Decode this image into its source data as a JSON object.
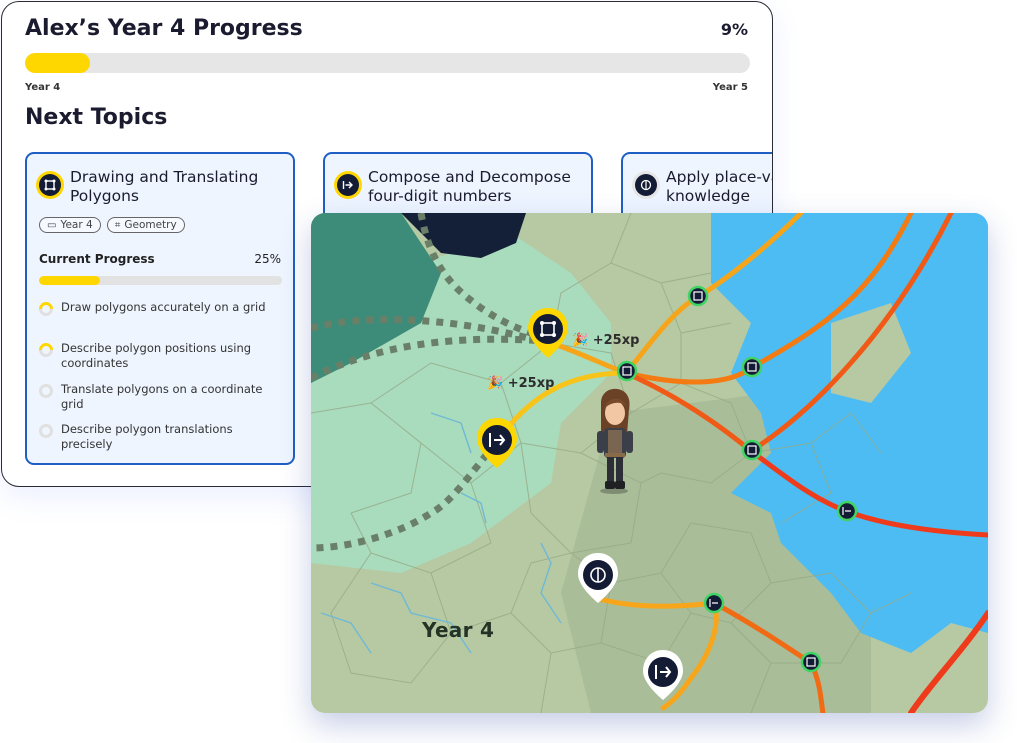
{
  "progress": {
    "title": "Alex’s Year 4 Progress",
    "percent_label": "9%",
    "fraction": 0.09,
    "start_label": "Year 4",
    "end_label": "Year 5",
    "bar_color": "#ffd700"
  },
  "next_topics": {
    "heading": "Next Topics",
    "cards": [
      {
        "title": "Drawing and Translating Polygons",
        "icon": "polygon-icon",
        "tags": [
          {
            "icon": "calendar-icon",
            "label": "Year 4"
          },
          {
            "icon": "polygon-icon",
            "label": "Geometry"
          }
        ],
        "progress_label": "Current Progress",
        "progress_pct": "25%",
        "progress_fraction": 0.25,
        "objectives": [
          {
            "text": "Draw polygons accurately on a grid",
            "state": "in-progress"
          },
          {
            "text": "Describe polygon positions using coordinates",
            "state": "in-progress"
          },
          {
            "text": "Translate polygons on a coordinate grid",
            "state": "not-started"
          },
          {
            "text": "Describe polygon translations precisely",
            "state": "not-started"
          }
        ]
      },
      {
        "title": "Compose and Decompose four-digit numbers",
        "icon": "arrow-right-bar-icon"
      },
      {
        "title": "Apply place-value knowledge",
        "icon": "brain-icon"
      }
    ]
  },
  "map": {
    "region_label": "Year 4",
    "xp_labels": [
      "+25xp",
      "+25xp"
    ],
    "colors": {
      "water": "#4cbcf3",
      "path_yellow": "#f8c41a",
      "path_orange": "#f47a12",
      "path_red": "#ee3b1c",
      "accent_green": "#3fd463",
      "node_dark": "#141b35"
    }
  }
}
